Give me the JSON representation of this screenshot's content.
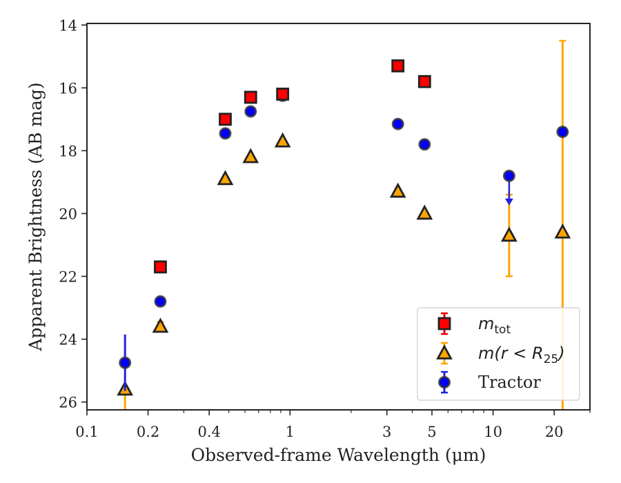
{
  "chart_data": {
    "type": "scatter",
    "title": "",
    "xlabel": "Observed-frame Wavelength (μm)",
    "ylabel": "Apparent Brightness (AB mag)",
    "xscale": "log",
    "xlim": [
      0.1,
      30
    ],
    "ylim": [
      26.25,
      13.95
    ],
    "y_inverted": true,
    "grid": false,
    "legend_position": "bottom-right",
    "xticks": [
      0.1,
      0.2,
      0.4,
      1,
      3,
      5,
      10,
      20
    ],
    "xtick_labels": [
      "0.1",
      "0.2",
      "0.4",
      "1",
      "3",
      "5",
      "10",
      "20"
    ],
    "yticks": [
      14,
      16,
      18,
      20,
      22,
      24,
      26
    ],
    "ytick_labels": [
      "14",
      "16",
      "18",
      "20",
      "22",
      "24",
      "26"
    ],
    "series": [
      {
        "key": "mtot",
        "legend_label": "m_tot",
        "label_main": "m",
        "label_sub": "tot",
        "marker": "square",
        "color": "#ff0000",
        "edge": "#222222",
        "errcolor": "#e60000",
        "points": [
          {
            "x": 0.23,
            "y": 21.7,
            "err": 0.05
          },
          {
            "x": 0.48,
            "y": 17.0,
            "err": 0.05
          },
          {
            "x": 0.64,
            "y": 16.3,
            "err": 0.05
          },
          {
            "x": 0.92,
            "y": 16.2,
            "err": 0.05
          },
          {
            "x": 3.4,
            "y": 15.3,
            "err": 0.05
          },
          {
            "x": 4.6,
            "y": 15.8,
            "err": 0.05
          }
        ]
      },
      {
        "key": "mr25",
        "legend_label": "m(r<R_25)",
        "label_main": "m(r < R",
        "label_sub": "25",
        "label_tail": ")",
        "marker": "triangle",
        "color": "#ffa500",
        "edge": "#222222",
        "errcolor": "#ffa500",
        "points": [
          {
            "x": 0.154,
            "y": 25.6,
            "err_low": 0.0,
            "err_high": 0.0,
            "clip_low": 26.4
          },
          {
            "x": 0.23,
            "y": 23.6,
            "err_low": 0.15,
            "err_high": 0.15
          },
          {
            "x": 0.48,
            "y": 18.9,
            "err_low": 0.05,
            "err_high": 0.05
          },
          {
            "x": 0.64,
            "y": 18.2,
            "err_low": 0.05,
            "err_high": 0.05
          },
          {
            "x": 0.92,
            "y": 17.7,
            "err_low": 0.05,
            "err_high": 0.05
          },
          {
            "x": 3.4,
            "y": 19.3,
            "err_low": 0.05,
            "err_high": 0.05
          },
          {
            "x": 4.6,
            "y": 20.0,
            "err_low": 0.05,
            "err_high": 0.05
          },
          {
            "x": 12.0,
            "y": 20.7,
            "err_low": 1.3,
            "err_high": 1.3
          },
          {
            "x": 22.0,
            "y": 20.6,
            "err_low": 6.1,
            "err_high": 6.1
          }
        ]
      },
      {
        "key": "tractor",
        "legend_label": "Tractor",
        "label_main": "Tractor",
        "marker": "circle",
        "color": "#0000ff",
        "edge": "#333333",
        "errcolor": "#2222dd",
        "points": [
          {
            "x": 0.154,
            "y": 24.75,
            "err": 0.9
          },
          {
            "x": 0.23,
            "y": 22.8,
            "err": 0.05
          },
          {
            "x": 0.48,
            "y": 17.45,
            "err": 0.05
          },
          {
            "x": 0.64,
            "y": 16.75,
            "err": 0.05
          },
          {
            "x": 0.92,
            "y": 16.25,
            "err": 0.05
          },
          {
            "x": 3.4,
            "y": 17.15,
            "err": 0.05
          },
          {
            "x": 4.6,
            "y": 17.8,
            "err": 0.05
          },
          {
            "x": 12.0,
            "y": 18.8,
            "err": 0.0,
            "upper_limit": true,
            "limit_to": 19.7
          },
          {
            "x": 22.0,
            "y": 17.4,
            "err": 0.05
          }
        ]
      }
    ]
  }
}
